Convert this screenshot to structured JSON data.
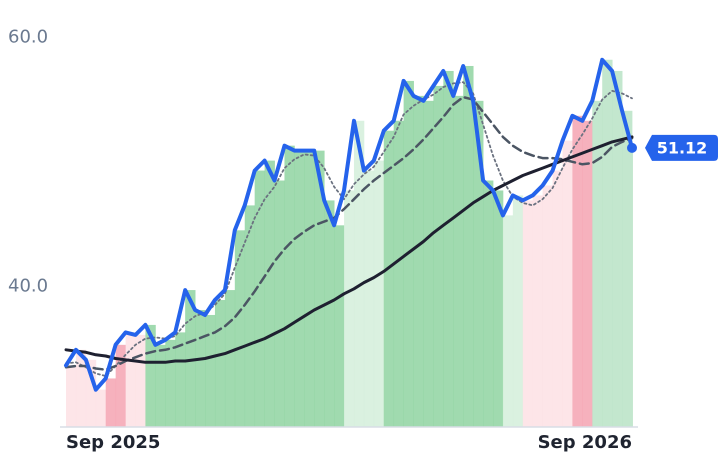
{
  "chart_data": {
    "type": "line",
    "categories": [
      "Sep 2025",
      null,
      null,
      null,
      null,
      null,
      null,
      null,
      null,
      null,
      null,
      null,
      null,
      null,
      null,
      null,
      null,
      null,
      null,
      null,
      null,
      null,
      null,
      null,
      null,
      null,
      null,
      null,
      null,
      null,
      null,
      null,
      null,
      null,
      null,
      null,
      null,
      null,
      null,
      null,
      null,
      null,
      null,
      null,
      null,
      null,
      null,
      null,
      null,
      null,
      null,
      null,
      null,
      null,
      null,
      null,
      null,
      "Sep 2026"
    ],
    "ylim": [
      28.7,
      63
    ],
    "yticks": [
      {
        "value": 40,
        "label": "40.0"
      },
      {
        "value": 60,
        "label": "60.0"
      }
    ],
    "fill_colors": [
      "#fde0e4",
      "#fde0e4",
      "#fde0e4",
      "#fde0e4",
      "#f5a3b1",
      "#f5a3b1",
      "#fde0e4",
      "#fde0e4",
      "#8fd3a1",
      "#8fd3a1",
      "#8fd3a1",
      "#8fd3a1",
      "#8fd3a1",
      "#8fd3a1",
      "#8fd3a1",
      "#8fd3a1",
      "#8fd3a1",
      "#8fd3a1",
      "#8fd3a1",
      "#8fd3a1",
      "#8fd3a1",
      "#8fd3a1",
      "#8fd3a1",
      "#8fd3a1",
      "#8fd3a1",
      "#8fd3a1",
      "#8fd3a1",
      "#8fd3a1",
      "#d4eedb",
      "#d4eedb",
      "#d4eedb",
      "#d4eedb",
      "#8fd3a1",
      "#8fd3a1",
      "#8fd3a1",
      "#8fd3a1",
      "#8fd3a1",
      "#8fd3a1",
      "#8fd3a1",
      "#8fd3a1",
      "#8fd3a1",
      "#8fd3a1",
      "#8fd3a1",
      "#8fd3a1",
      "#d4eedb",
      "#d4eedb",
      "#fde0e4",
      "#fde0e4",
      "#fde0e4",
      "#fde0e4",
      "#fde0e4",
      "#f5a3b1",
      "#f5a3b1",
      "#b9e3c5",
      "#b9e3c5",
      "#b9e3c5",
      "#b9e3c5",
      "#b9e3c5"
    ],
    "series": [
      {
        "color": "#2563eb",
        "style": "solid",
        "width": 4,
        "values": [
          33.65,
          34.9,
          34.1,
          31.7,
          32.6,
          35.3,
          36.3,
          36.1,
          36.9,
          35.3,
          35.7,
          36.3,
          39.7,
          38.1,
          37.7,
          38.9,
          39.7,
          44.5,
          46.5,
          49.3,
          50.1,
          48.5,
          51.3,
          50.9,
          50.9,
          50.9,
          46.9,
          44.9,
          47.7,
          53.3,
          49.3,
          50.1,
          52.5,
          53.3,
          56.5,
          55.3,
          54.9,
          56.1,
          57.3,
          55.3,
          57.7,
          54.9,
          48.5,
          47.7,
          45.7,
          47.3,
          46.9,
          47.3,
          48.1,
          49.3,
          51.7,
          53.7,
          53.3,
          54.9,
          58.2,
          57.3,
          54.1,
          51.12
        ],
        "value_labels": [
          null,
          null,
          null,
          null,
          null,
          null,
          null,
          null,
          null,
          null,
          null,
          null,
          null,
          null,
          null,
          null,
          null,
          null,
          null,
          null,
          null,
          null,
          null,
          null,
          null,
          null,
          null,
          null,
          null,
          null,
          null,
          null,
          null,
          null,
          null,
          null,
          null,
          null,
          null,
          null,
          null,
          null,
          null,
          null,
          null,
          null,
          null,
          null,
          null,
          null,
          null,
          null,
          null,
          null,
          null,
          null,
          null,
          "51.12"
        ]
      },
      {
        "color": "#1e2030",
        "style": "solid",
        "width": 3,
        "values": [
          34.9,
          34.8,
          34.7,
          34.5,
          34.4,
          34.2,
          34.1,
          34.0,
          33.9,
          33.9,
          33.9,
          34.0,
          34.0,
          34.1,
          34.2,
          34.4,
          34.6,
          34.9,
          35.2,
          35.5,
          35.8,
          36.2,
          36.6,
          37.1,
          37.6,
          38.1,
          38.5,
          38.9,
          39.4,
          39.8,
          40.3,
          40.7,
          41.2,
          41.8,
          42.4,
          43.0,
          43.6,
          44.3,
          44.9,
          45.5,
          46.1,
          46.7,
          47.2,
          47.7,
          48.1,
          48.5,
          48.9,
          49.2,
          49.5,
          49.8,
          50.1,
          50.4,
          50.7,
          51.0,
          51.3,
          51.6,
          51.8,
          52.0
        ]
      },
      {
        "color": "#4b5563",
        "style": "dashed",
        "width": 2.5,
        "values": [
          33.5,
          33.6,
          33.6,
          33.4,
          33.3,
          33.6,
          34.0,
          34.3,
          34.6,
          34.8,
          34.9,
          35.1,
          35.4,
          35.7,
          36.0,
          36.3,
          36.8,
          37.5,
          38.5,
          39.6,
          40.8,
          42.0,
          43.0,
          43.8,
          44.4,
          44.9,
          45.2,
          45.5,
          46.2,
          47.0,
          47.8,
          48.5,
          49.1,
          49.7,
          50.3,
          51.0,
          51.8,
          52.7,
          53.6,
          54.6,
          55.2,
          55.0,
          54.0,
          53.0,
          52.0,
          51.3,
          50.8,
          50.5,
          50.3,
          50.3,
          50.2,
          50.0,
          49.8,
          49.9,
          50.4,
          51.2,
          51.6,
          51.9
        ]
      },
      {
        "color": "#6b7280",
        "style": "dotted",
        "width": 1.8,
        "values": [
          33.8,
          33.9,
          33.5,
          33.0,
          32.8,
          33.6,
          34.5,
          35.3,
          35.8,
          35.9,
          35.8,
          36.0,
          37.0,
          37.6,
          37.9,
          38.5,
          39.4,
          41.5,
          43.5,
          45.5,
          47.0,
          48.0,
          49.5,
          50.2,
          50.6,
          50.5,
          49.5,
          48.0,
          47.0,
          48.2,
          49.0,
          49.6,
          50.8,
          52.0,
          53.8,
          54.5,
          55.0,
          55.4,
          56.0,
          56.3,
          56.4,
          55.5,
          53.0,
          50.5,
          48.5,
          47.2,
          46.7,
          46.5,
          47.0,
          47.9,
          49.5,
          51.0,
          52.2,
          53.5,
          55.0,
          55.7,
          55.5,
          55.1
        ]
      }
    ]
  }
}
